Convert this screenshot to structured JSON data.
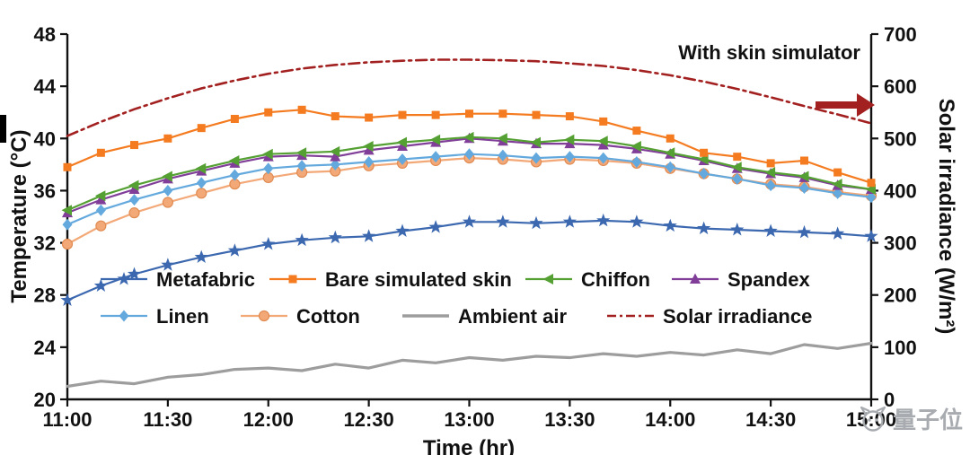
{
  "watermark": {
    "text": "量子位",
    "color": "#a8abaf"
  },
  "chart_data": {
    "type": "line",
    "annotation": "With skin simulator",
    "xlabel": "Time (hr)",
    "ylabel_left": "Temperature (°C)",
    "ylabel_right": "Solar irradiance (W/m²)",
    "x_range": [
      11,
      15
    ],
    "x_ticks": [
      "11:00",
      "11:30",
      "12:00",
      "12:30",
      "13:00",
      "13:30",
      "14:00",
      "14:30",
      "15:00"
    ],
    "y_left_range": [
      20,
      48
    ],
    "y_left_ticks": [
      20,
      24,
      28,
      32,
      36,
      40,
      44,
      48
    ],
    "y_right_range": [
      0,
      700
    ],
    "y_right_ticks": [
      0,
      100,
      200,
      300,
      400,
      500,
      600,
      700
    ],
    "x": [
      11.0,
      11.167,
      11.333,
      11.5,
      11.667,
      11.833,
      12.0,
      12.167,
      12.333,
      12.5,
      12.667,
      12.833,
      13.0,
      13.167,
      13.333,
      13.5,
      13.667,
      13.833,
      14.0,
      14.167,
      14.333,
      14.5,
      14.667,
      14.833,
      15.0
    ],
    "series": [
      {
        "name": "Solar irradiance",
        "color": "#a32020",
        "marker": "none",
        "dash": "dashdot",
        "axis": "right",
        "values": [
          505,
          532,
          556,
          577,
          596,
          611,
          624,
          634,
          641,
          646,
          649,
          651,
          651,
          650,
          648,
          644,
          639,
          631,
          621,
          609,
          595,
          579,
          562,
          546,
          529
        ]
      },
      {
        "name": "Ambient air",
        "color": "#9d9d9d",
        "marker": "none",
        "axis": "left",
        "values": [
          21.0,
          21.4,
          21.2,
          21.7,
          21.9,
          22.3,
          22.4,
          22.2,
          22.7,
          22.4,
          23.0,
          22.8,
          23.2,
          23.0,
          23.3,
          23.2,
          23.5,
          23.3,
          23.6,
          23.4,
          23.8,
          23.5,
          24.2,
          23.9,
          24.3
        ]
      },
      {
        "name": "Cotton",
        "color": "#f3a878",
        "edge": "#e08b52",
        "marker": "circle",
        "axis": "left",
        "values": [
          31.9,
          33.3,
          34.3,
          35.1,
          35.8,
          36.5,
          37.0,
          37.4,
          37.5,
          37.9,
          38.1,
          38.3,
          38.5,
          38.4,
          38.2,
          38.4,
          38.3,
          38.1,
          37.7,
          37.3,
          36.9,
          36.5,
          36.3,
          35.9,
          35.6
        ]
      },
      {
        "name": "Linen",
        "color": "#63a9dd",
        "marker": "diamond",
        "axis": "left",
        "values": [
          33.4,
          34.5,
          35.3,
          36.0,
          36.6,
          37.2,
          37.7,
          37.9,
          38.0,
          38.2,
          38.4,
          38.6,
          38.8,
          38.7,
          38.5,
          38.6,
          38.5,
          38.2,
          37.8,
          37.3,
          36.9,
          36.4,
          36.2,
          35.8,
          35.5
        ]
      },
      {
        "name": "Spandex",
        "color": "#803e98",
        "marker": "triangle-up",
        "axis": "left",
        "values": [
          34.3,
          35.3,
          36.1,
          36.9,
          37.5,
          38.1,
          38.6,
          38.7,
          38.6,
          39.1,
          39.4,
          39.7,
          40.0,
          39.8,
          39.6,
          39.6,
          39.5,
          39.2,
          38.8,
          38.3,
          37.7,
          37.3,
          37.0,
          36.4,
          36.1
        ]
      },
      {
        "name": "Chiffon",
        "color": "#55a033",
        "marker": "triangle-left",
        "axis": "left",
        "values": [
          34.5,
          35.6,
          36.4,
          37.1,
          37.7,
          38.3,
          38.8,
          38.9,
          39.0,
          39.4,
          39.7,
          39.9,
          40.1,
          40.0,
          39.7,
          39.9,
          39.8,
          39.4,
          38.9,
          38.4,
          37.8,
          37.4,
          37.1,
          36.5,
          36.1
        ]
      },
      {
        "name": "Bare simulated skin",
        "color": "#f47b20",
        "marker": "square",
        "axis": "left",
        "values": [
          37.8,
          38.9,
          39.5,
          40.0,
          40.8,
          41.5,
          42.0,
          42.2,
          41.7,
          41.6,
          41.8,
          41.8,
          41.9,
          41.9,
          41.8,
          41.7,
          41.3,
          40.6,
          40.0,
          38.9,
          38.6,
          38.1,
          38.3,
          37.4,
          36.6
        ]
      },
      {
        "name": "Metafabric",
        "color": "#3c68b0",
        "marker": "star",
        "axis": "left",
        "values": [
          27.6,
          28.7,
          29.6,
          30.3,
          30.9,
          31.4,
          31.9,
          32.2,
          32.4,
          32.5,
          32.9,
          33.2,
          33.6,
          33.6,
          33.5,
          33.6,
          33.7,
          33.6,
          33.3,
          33.1,
          33.0,
          32.9,
          32.8,
          32.7,
          32.5
        ]
      }
    ],
    "legend": {
      "rows": [
        [
          "Metafabric",
          "Bare simulated skin",
          "Chiffon",
          "Spandex"
        ],
        [
          "Linen",
          "Cotton",
          "Ambient air",
          "Solar irradiance"
        ]
      ],
      "position": "inside-center"
    }
  }
}
